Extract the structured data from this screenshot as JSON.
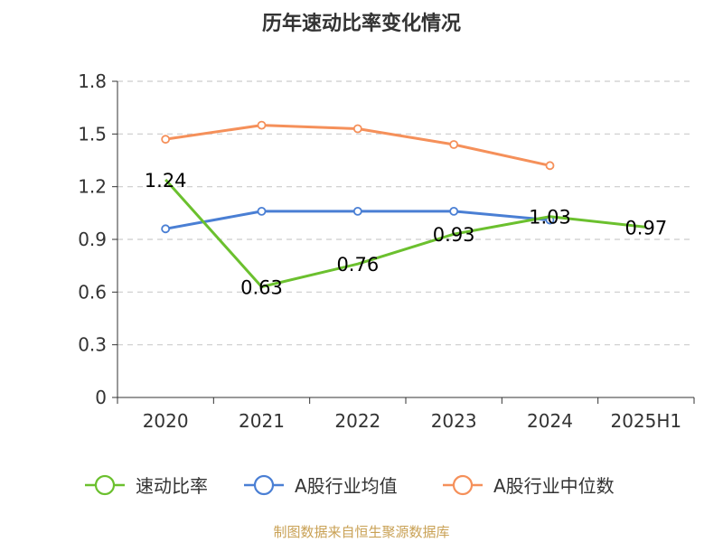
{
  "chart_data": {
    "type": "line",
    "title": "历年速动比率变化情况",
    "categories": [
      "2020",
      "2021",
      "2022",
      "2023",
      "2024",
      "2025H1"
    ],
    "ylim": [
      0,
      1.8
    ],
    "yticks": [
      "0",
      "0.3",
      "0.6",
      "0.9",
      "1.2",
      "1.5",
      "1.8"
    ],
    "grid": true,
    "legend_position": "bottom",
    "series": [
      {
        "name": "速动比率",
        "color": "#6bc02e",
        "values": [
          1.24,
          0.63,
          0.76,
          0.93,
          1.03,
          0.97
        ],
        "labels": [
          "1.24",
          "0.63",
          "0.76",
          "0.93",
          "1.03",
          "0.97"
        ]
      },
      {
        "name": "A股行业均值",
        "color": "#4a7fd4",
        "values": [
          0.96,
          1.06,
          1.06,
          1.06,
          1.01,
          null
        ]
      },
      {
        "name": "A股行业中位数",
        "color": "#f5905a",
        "values": [
          1.47,
          1.55,
          1.53,
          1.44,
          1.32,
          null
        ]
      }
    ]
  },
  "source": "制图数据来自恒生聚源数据库"
}
